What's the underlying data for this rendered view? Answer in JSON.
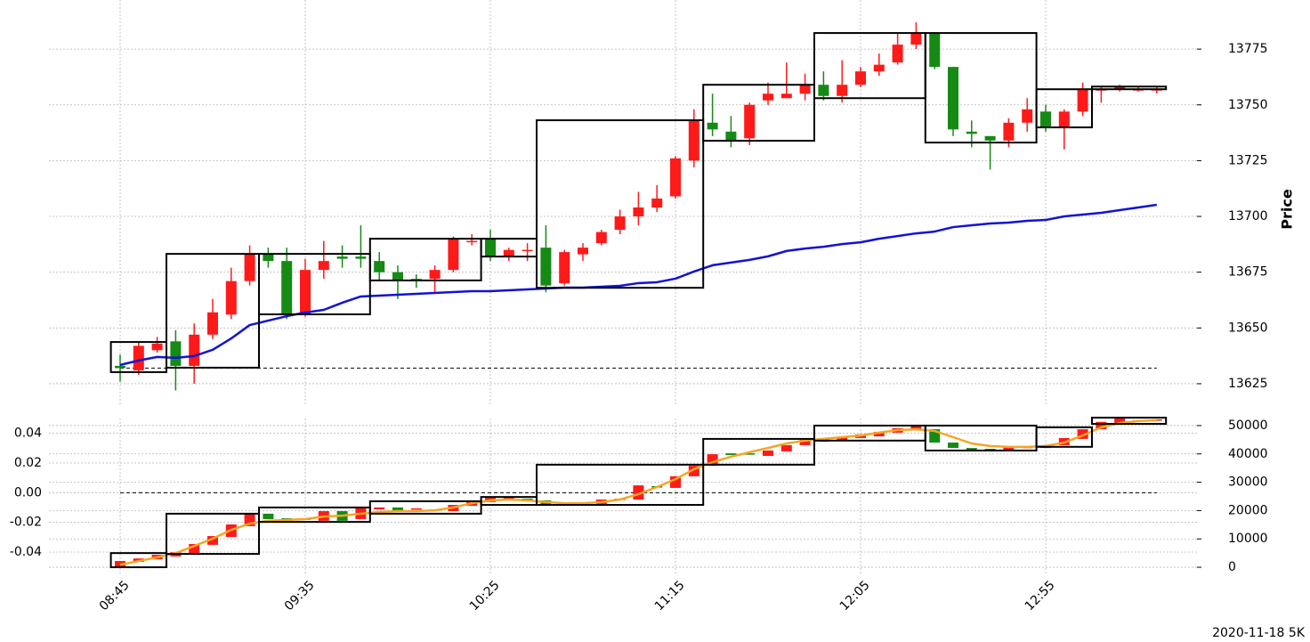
{
  "chart_data": [
    {
      "type": "candlestick",
      "ylabel": "Price",
      "ylim": [
        13615,
        13797
      ],
      "yticks": [
        13625,
        13650,
        13675,
        13700,
        13725,
        13750,
        13775
      ],
      "grid": true,
      "up_color": "#ff1a1a",
      "down_color": "#158a15",
      "candles": {
        "open": [
          13633,
          13631,
          13640,
          13644,
          13633,
          13647,
          13656,
          13671,
          13683,
          13680,
          13656,
          13676,
          13682,
          13682,
          13680,
          13675,
          13672,
          13672,
          13676,
          13689,
          13690,
          13682,
          13685,
          13686,
          13670,
          13683,
          13688,
          13694,
          13700,
          13704,
          13709,
          13725,
          13742,
          13738,
          13735,
          13752,
          13753,
          13755,
          13759,
          13754,
          13759,
          13765,
          13769,
          13777,
          13782,
          13767,
          13738,
          13736,
          13734,
          13742,
          13747,
          13740,
          13747,
          13757,
          13757,
          13757,
          13757
        ],
        "high": [
          13638,
          13644,
          13646,
          13649,
          13652,
          13663,
          13677,
          13687,
          13686,
          13686,
          13681,
          13689,
          13687,
          13696,
          13684,
          13678,
          13674,
          13678,
          13691,
          13692,
          13694,
          13686,
          13688,
          13696,
          13685,
          13688,
          13694,
          13703,
          13711,
          13714,
          13727,
          13748,
          13755,
          13745,
          13751,
          13760,
          13769,
          13764,
          13765,
          13770,
          13767,
          13773,
          13782,
          13787,
          13782,
          13767,
          13743,
          13736,
          13744,
          13753,
          13750,
          13748,
          13760,
          13758,
          13759,
          13758,
          13758
        ],
        "low": [
          13626,
          13629,
          13639,
          13622,
          13625,
          13645,
          13654,
          13669,
          13677,
          13654,
          13655,
          13672,
          13677,
          13677,
          13671,
          13663,
          13668,
          13666,
          13675,
          13687,
          13680,
          13680,
          13680,
          13666,
          13669,
          13680,
          13687,
          13692,
          13696,
          13702,
          13708,
          13722,
          13736,
          13731,
          13732,
          13750,
          13753,
          13752,
          13752,
          13751,
          13758,
          13763,
          13768,
          13775,
          13766,
          13736,
          13731,
          13721,
          13731,
          13738,
          13738,
          13730,
          13745,
          13751,
          13756,
          13756,
          13755
        ],
        "close": [
          13632,
          13642,
          13643,
          13633,
          13647,
          13657,
          13671,
          13683,
          13680,
          13656,
          13676,
          13680,
          13681,
          13681,
          13675,
          13671,
          13671,
          13676,
          13690,
          13689,
          13682,
          13685,
          13685,
          13669,
          13684,
          13686,
          13693,
          13700,
          13704,
          13708,
          13726,
          13743,
          13739,
          13734,
          13750,
          13755,
          13755,
          13759,
          13754,
          13759,
          13765,
          13768,
          13777,
          13782,
          13767,
          13739,
          13737,
          13734,
          13742,
          13748,
          13740,
          13747,
          13757,
          13757,
          13758,
          13757,
          13757
        ]
      },
      "series": [
        {
          "color": "#1212d6",
          "values": [
            13633.4,
            13635.4,
            13637.0,
            13636.6,
            13637.4,
            13640.2,
            13645.3,
            13651.3,
            13653.3,
            13655.3,
            13656.9,
            13658.1,
            13661.3,
            13664.1,
            13664.5,
            13664.9,
            13665.3,
            13665.7,
            13666.1,
            13666.5,
            13666.5,
            13666.9,
            13667.3,
            13667.7,
            13668.1,
            13668.1,
            13668.5,
            13668.9,
            13670.1,
            13670.5,
            13672.1,
            13675.3,
            13678.1,
            13679.3,
            13680.5,
            13682.1,
            13684.5,
            13685.6,
            13686.4,
            13687.6,
            13688.4,
            13690.0,
            13691.2,
            13692.4,
            13693.2,
            13695.2,
            13696.0,
            13696.8,
            13697.2,
            13698.0,
            13698.4,
            13700.0,
            13700.8,
            13701.6,
            13702.8,
            13704.0,
            13705.2
          ]
        }
      ],
      "boxes": {
        "items": [
          {
            "start": 0,
            "end": 2,
            "high": 13643.7,
            "low": 13630.2
          },
          {
            "start": 3,
            "end": 7,
            "high": 13683.2,
            "low": 13632.2
          },
          {
            "start": 8,
            "end": 13,
            "high": 13683.2,
            "low": 13656.1
          },
          {
            "start": 14,
            "end": 19,
            "high": 13690,
            "low": 13671.3
          },
          {
            "start": 20,
            "end": 22,
            "high": 13690,
            "low": 13682
          },
          {
            "start": 23,
            "end": 31,
            "high": 13743.1,
            "low": 13668
          },
          {
            "start": 32,
            "end": 37,
            "high": 13759,
            "low": 13733.9
          },
          {
            "start": 38,
            "end": 43,
            "high": 13782.2,
            "low": 13753
          },
          {
            "start": 44,
            "end": 49,
            "high": 13782.2,
            "low": 13733.1
          },
          {
            "start": 50,
            "end": 52,
            "high": 13757,
            "low": 13739.9
          },
          {
            "start": 53,
            "end": 56,
            "high": 13758.2,
            "low": 13757
          }
        ]
      },
      "ref_line": 13632
    },
    {
      "type": "candlestick",
      "categories": [
        "08:45",
        null,
        null,
        null,
        null,
        null,
        null,
        null,
        null,
        null,
        "09:35",
        null,
        null,
        null,
        null,
        null,
        null,
        null,
        null,
        null,
        "10:25",
        null,
        null,
        null,
        null,
        null,
        null,
        null,
        null,
        null,
        "11:15",
        null,
        null,
        null,
        null,
        null,
        null,
        null,
        null,
        null,
        "12:05",
        null,
        null,
        null,
        null,
        null,
        null,
        null,
        null,
        null,
        "12:55",
        null,
        null,
        null,
        null,
        null,
        null
      ],
      "ylim": [
        -0.055,
        0.05
      ],
      "yticks": [
        -0.04,
        -0.02,
        {
          "value": 0,
          "label": "0.00"
        },
        0.02,
        0.04
      ],
      "y2lim": [
        -2500,
        52500
      ],
      "y2ticks": [
        0,
        10000,
        20000,
        30000,
        40000,
        50000
      ],
      "grid": true,
      "up_color": "#ff1a1a",
      "down_color": "#158a15",
      "candles": {
        "axis": "y2",
        "open": [
          300,
          1900,
          2800,
          3800,
          5000,
          7900,
          10700,
          14500,
          18900,
          17300,
          17300,
          16400,
          19800,
          17000,
          20400,
          21100,
          20400,
          20100,
          19800,
          21700,
          23000,
          24200,
          24200,
          23600,
          22300,
          22300,
          22300,
          23900,
          23900,
          28600,
          28000,
          32100,
          35800,
          40200,
          40200,
          39300,
          40900,
          43100,
          45600,
          44700,
          45600,
          46200,
          47500,
          48700,
          48700,
          44000,
          42100,
          41800,
          41200,
          42500,
          43100,
          43100,
          45300,
          48700,
          50600,
          51900,
          51900
        ],
        "close": [
          2200,
          3100,
          4400,
          5300,
          8200,
          11000,
          15100,
          18900,
          17000,
          16400,
          16700,
          19800,
          16400,
          21100,
          21100,
          20100,
          20800,
          20400,
          22000,
          23300,
          24500,
          24500,
          23900,
          22000,
          22600,
          22600,
          23900,
          24200,
          28900,
          28300,
          32100,
          35800,
          39900,
          39600,
          39900,
          41200,
          43100,
          45000,
          44300,
          45900,
          46900,
          47800,
          49100,
          50000,
          44000,
          42100,
          41200,
          41200,
          42500,
          42500,
          42100,
          45600,
          48700,
          51300,
          52500,
          51600,
          52200
        ]
      },
      "series": [
        {
          "color": "#f5a623",
          "axis": "y2",
          "values": [
            900,
            2200,
            3500,
            5000,
            7500,
            10100,
            13200,
            15400,
            16400,
            16700,
            17000,
            17900,
            18200,
            18900,
            19500,
            19800,
            19800,
            20100,
            21100,
            22600,
            23600,
            23900,
            23600,
            23000,
            22600,
            22600,
            23000,
            23900,
            25800,
            28300,
            31100,
            34600,
            37100,
            39000,
            40600,
            42100,
            43700,
            44700,
            45300,
            45900,
            46500,
            47500,
            48400,
            48700,
            48100,
            45900,
            43700,
            42800,
            42500,
            42500,
            42800,
            44000,
            46500,
            49400,
            50900,
            51600,
            51900
          ]
        }
      ],
      "boxes": {
        "axis": "y2",
        "items": [
          {
            "start": 0,
            "end": 2,
            "high": 5000,
            "low": 0
          },
          {
            "start": 3,
            "end": 7,
            "high": 18900,
            "low": 4700
          },
          {
            "start": 8,
            "end": 13,
            "high": 21100,
            "low": 16000
          },
          {
            "start": 14,
            "end": 19,
            "high": 23300,
            "low": 18900
          },
          {
            "start": 20,
            "end": 22,
            "high": 24800,
            "low": 22000
          },
          {
            "start": 23,
            "end": 31,
            "high": 36200,
            "low": 22000
          },
          {
            "start": 32,
            "end": 37,
            "high": 45300,
            "low": 36200
          },
          {
            "start": 38,
            "end": 43,
            "high": 50000,
            "low": 44700
          },
          {
            "start": 44,
            "end": 49,
            "high": 50000,
            "low": 41200
          },
          {
            "start": 50,
            "end": 52,
            "high": 49400,
            "low": 42500
          },
          {
            "start": 53,
            "end": 56,
            "high": 52800,
            "low": 50600
          }
        ]
      },
      "ref_line": 0
    }
  ],
  "footnote": "2020-11-18 5K"
}
